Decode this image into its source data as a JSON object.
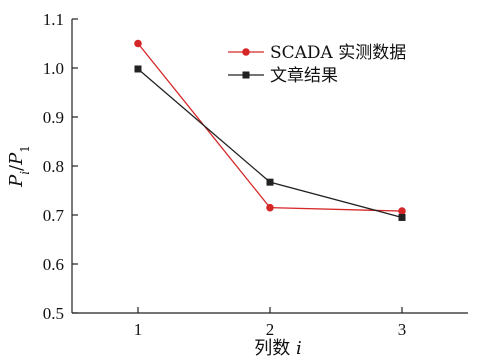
{
  "chart_data": {
    "type": "line",
    "categories": [
      "1",
      "2",
      "3"
    ],
    "x": [
      1,
      2,
      3
    ],
    "xlim": [
      0.5,
      3.5
    ],
    "ylim": [
      0.5,
      1.1
    ],
    "yticks": [
      "0.5",
      "0.6",
      "0.7",
      "0.8",
      "0.9",
      "1.0",
      "1.1"
    ],
    "xlabel": "列数 i",
    "ylabel": "Pi/P1",
    "grid": false,
    "legend_position": "top-right",
    "series": [
      {
        "name": "SCADA 实测数据",
        "values": [
          1.05,
          0.715,
          0.708
        ],
        "color": "#d62728",
        "marker": "circle"
      },
      {
        "name": "文章结果",
        "values": [
          0.998,
          0.767,
          0.695
        ],
        "color": "#222222",
        "marker": "square"
      }
    ]
  }
}
